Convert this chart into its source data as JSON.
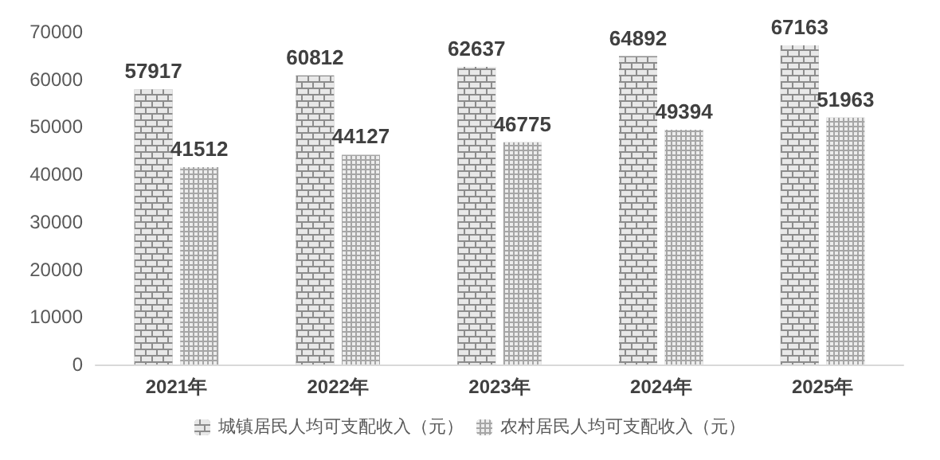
{
  "chart_data": {
    "type": "bar",
    "categories": [
      "2021年",
      "2022年",
      "2023年",
      "2024年",
      "2025年"
    ],
    "series": [
      {
        "name": "城镇居民人均可支配收入（元）",
        "color": "#8c8c8c",
        "values": [
          57917,
          60812,
          62637,
          64892,
          67163
        ]
      },
      {
        "name": "农村居民人均可支配收入（元）",
        "color": "#a6a6a6",
        "values": [
          41512,
          44127,
          46775,
          49394,
          51963
        ]
      }
    ],
    "ylim": [
      0,
      70000
    ],
    "yticks": [
      0,
      10000,
      20000,
      30000,
      40000,
      50000,
      60000,
      70000
    ],
    "grid": false,
    "legend": "bottom",
    "data_labels": true
  }
}
